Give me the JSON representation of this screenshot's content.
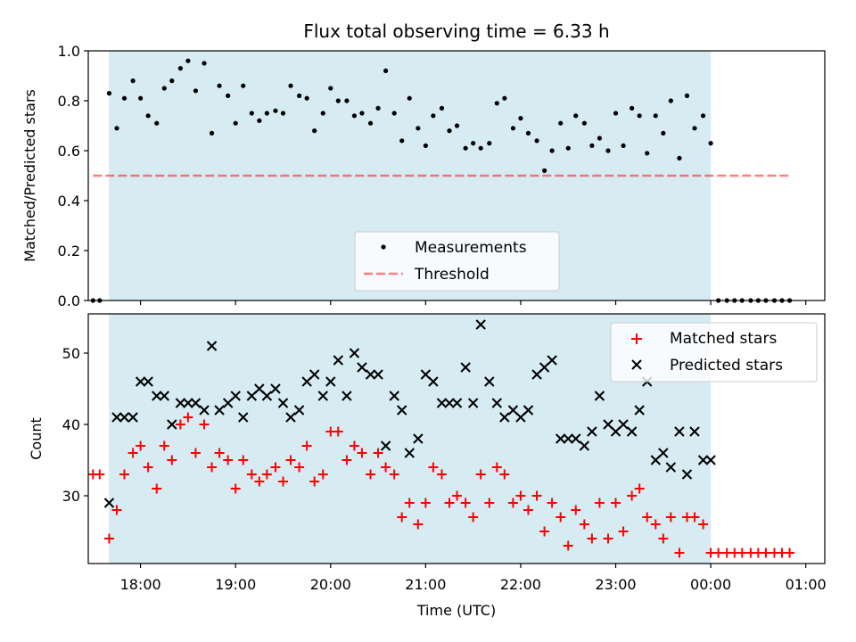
{
  "figure": {
    "title": "Flux total observing time = 6.33 h",
    "xlabel": "Time (UTC)"
  },
  "colors": {
    "shade": "#add8e6",
    "threshold": "#ff0000",
    "measurements": "#000000",
    "matched": "#ff0000",
    "predicted": "#000000",
    "legend_bg": "#ffffff"
  },
  "chart_data": [
    {
      "type": "scatter",
      "ylabel": "Matched/Predicted stars",
      "xlim": [
        -0.55,
        7.2
      ],
      "ylim": [
        0,
        1
      ],
      "xticks": [
        0,
        1,
        2,
        3,
        4,
        5,
        6,
        7
      ],
      "xtick_labels": [
        "18:00",
        "19:00",
        "20:00",
        "21:00",
        "22:00",
        "23:00",
        "00:00",
        "01:00"
      ],
      "yticks": [
        0.0,
        0.2,
        0.4,
        0.6,
        0.8,
        1.0
      ],
      "ytick_labels": [
        "0.0",
        "0.2",
        "0.4",
        "0.6",
        "0.8",
        "1.0"
      ],
      "shaded_span": [
        -0.333,
        6.0
      ],
      "legend": {
        "position": "lower center",
        "entries": [
          "Measurements",
          "Threshold"
        ]
      },
      "threshold": {
        "name": "Threshold",
        "y": 0.5,
        "x": [
          -0.5,
          6.83
        ],
        "style": "dashed"
      },
      "series": [
        {
          "name": "Measurements",
          "marker": "dot",
          "x": [
            -0.5,
            -0.43,
            -0.33,
            -0.25,
            -0.17,
            -0.08,
            0.0,
            0.08,
            0.17,
            0.25,
            0.33,
            0.42,
            0.5,
            0.58,
            0.67,
            0.75,
            0.83,
            0.92,
            1.0,
            1.08,
            1.17,
            1.25,
            1.33,
            1.42,
            1.5,
            1.58,
            1.67,
            1.75,
            1.83,
            1.92,
            2.0,
            2.08,
            2.17,
            2.25,
            2.33,
            2.42,
            2.5,
            2.58,
            2.67,
            2.75,
            2.83,
            2.92,
            3.0,
            3.08,
            3.17,
            3.25,
            3.33,
            3.42,
            3.5,
            3.58,
            3.67,
            3.75,
            3.83,
            3.92,
            4.0,
            4.08,
            4.17,
            4.25,
            4.33,
            4.42,
            4.5,
            4.58,
            4.67,
            4.75,
            4.83,
            4.92,
            5.0,
            5.08,
            5.17,
            5.25,
            5.33,
            5.42,
            5.5,
            5.58,
            5.67,
            5.75,
            5.83,
            5.92,
            6.0,
            6.08,
            6.17,
            6.25,
            6.33,
            6.42,
            6.5,
            6.58,
            6.67,
            6.75,
            6.83
          ],
          "y": [
            0,
            0,
            0.83,
            0.69,
            0.81,
            0.88,
            0.81,
            0.74,
            0.71,
            0.85,
            0.88,
            0.93,
            0.96,
            0.84,
            0.95,
            0.67,
            0.86,
            0.82,
            0.71,
            0.86,
            0.75,
            0.72,
            0.75,
            0.76,
            0.75,
            0.86,
            0.82,
            0.81,
            0.68,
            0.75,
            0.85,
            0.8,
            0.8,
            0.74,
            0.75,
            0.71,
            0.77,
            0.92,
            0.75,
            0.64,
            0.81,
            0.69,
            0.62,
            0.74,
            0.77,
            0.68,
            0.7,
            0.61,
            0.63,
            0.61,
            0.63,
            0.79,
            0.81,
            0.69,
            0.73,
            0.67,
            0.64,
            0.52,
            0.6,
            0.71,
            0.61,
            0.74,
            0.71,
            0.62,
            0.65,
            0.6,
            0.75,
            0.62,
            0.77,
            0.74,
            0.59,
            0.74,
            0.67,
            0.8,
            0.57,
            0.82,
            0.69,
            0.74,
            0.63,
            0,
            0,
            0,
            0,
            0,
            0,
            0,
            0,
            0,
            0
          ]
        }
      ]
    },
    {
      "type": "scatter",
      "ylabel": "Count",
      "xlim": [
        -0.55,
        7.2
      ],
      "ylim": [
        20.5,
        55.5
      ],
      "xticks": [
        0,
        1,
        2,
        3,
        4,
        5,
        6,
        7
      ],
      "xtick_labels": [
        "18:00",
        "19:00",
        "20:00",
        "21:00",
        "22:00",
        "23:00",
        "00:00",
        "01:00"
      ],
      "yticks": [
        30,
        40,
        50
      ],
      "ytick_labels": [
        "30",
        "40",
        "50"
      ],
      "shaded_span": [
        -0.333,
        6.0
      ],
      "legend": {
        "position": "upper right",
        "entries": [
          "Matched stars",
          "Predicted stars"
        ]
      },
      "series": [
        {
          "name": "Matched stars",
          "marker": "plus",
          "x": [
            -0.5,
            -0.43,
            -0.33,
            -0.25,
            -0.17,
            -0.08,
            0.0,
            0.08,
            0.17,
            0.25,
            0.33,
            0.42,
            0.5,
            0.58,
            0.67,
            0.75,
            0.83,
            0.92,
            1.0,
            1.08,
            1.17,
            1.25,
            1.33,
            1.42,
            1.5,
            1.58,
            1.67,
            1.75,
            1.83,
            1.92,
            2.0,
            2.08,
            2.17,
            2.25,
            2.33,
            2.42,
            2.5,
            2.58,
            2.67,
            2.75,
            2.83,
            2.92,
            3.0,
            3.08,
            3.17,
            3.25,
            3.33,
            3.42,
            3.5,
            3.58,
            3.67,
            3.75,
            3.83,
            3.92,
            4.0,
            4.08,
            4.17,
            4.25,
            4.33,
            4.42,
            4.5,
            4.58,
            4.67,
            4.75,
            4.83,
            4.92,
            5.0,
            5.08,
            5.17,
            5.25,
            5.33,
            5.42,
            5.5,
            5.58,
            5.67,
            5.75,
            5.83,
            5.92,
            6.0,
            6.08,
            6.17,
            6.25,
            6.33,
            6.42,
            6.5,
            6.58,
            6.67,
            6.75,
            6.83
          ],
          "y": [
            33,
            33,
            24,
            28,
            33,
            36,
            37,
            34,
            31,
            37,
            35,
            40,
            41,
            36,
            40,
            34,
            36,
            35,
            31,
            35,
            33,
            32,
            33,
            34,
            32,
            35,
            34,
            37,
            32,
            33,
            39,
            39,
            35,
            37,
            36,
            33,
            36,
            34,
            33,
            27,
            29,
            26,
            29,
            34,
            33,
            29,
            30,
            29,
            27,
            33,
            29,
            34,
            33,
            29,
            30,
            28,
            30,
            25,
            29,
            27,
            23,
            28,
            26,
            24,
            29,
            24,
            29,
            25,
            30,
            31,
            27,
            26,
            24,
            27,
            22,
            27,
            27,
            26,
            22,
            22,
            22,
            22,
            22,
            22,
            22,
            22,
            22,
            22,
            22
          ]
        },
        {
          "name": "Predicted stars",
          "marker": "x",
          "x": [
            -0.33,
            -0.25,
            -0.17,
            -0.08,
            0.0,
            0.08,
            0.17,
            0.25,
            0.33,
            0.42,
            0.5,
            0.58,
            0.67,
            0.75,
            0.83,
            0.92,
            1.0,
            1.08,
            1.17,
            1.25,
            1.33,
            1.42,
            1.5,
            1.58,
            1.67,
            1.75,
            1.83,
            1.92,
            2.0,
            2.08,
            2.17,
            2.25,
            2.33,
            2.42,
            2.5,
            2.58,
            2.67,
            2.75,
            2.83,
            2.92,
            3.0,
            3.08,
            3.17,
            3.25,
            3.33,
            3.42,
            3.5,
            3.58,
            3.67,
            3.75,
            3.83,
            3.92,
            4.0,
            4.08,
            4.17,
            4.25,
            4.33,
            4.42,
            4.5,
            4.58,
            4.67,
            4.75,
            4.83,
            4.92,
            5.0,
            5.08,
            5.17,
            5.25,
            5.33,
            5.42,
            5.5,
            5.58,
            5.67,
            5.75,
            5.83,
            5.92,
            6.0
          ],
          "y": [
            29,
            41,
            41,
            41,
            46,
            46,
            44,
            44,
            40,
            43,
            43,
            43,
            42,
            51,
            42,
            43,
            44,
            41,
            44,
            45,
            44,
            45,
            43,
            41,
            42,
            46,
            47,
            44,
            46,
            49,
            44,
            50,
            48,
            47,
            47,
            37,
            44,
            42,
            36,
            38,
            47,
            46,
            43,
            43,
            43,
            48,
            43,
            54,
            46,
            43,
            41,
            42,
            41,
            42,
            47,
            48,
            49,
            38,
            38,
            38,
            37,
            39,
            44,
            40,
            39,
            40,
            39,
            42,
            46,
            35,
            36,
            34,
            39,
            33,
            39,
            35,
            35
          ]
        }
      ]
    }
  ]
}
